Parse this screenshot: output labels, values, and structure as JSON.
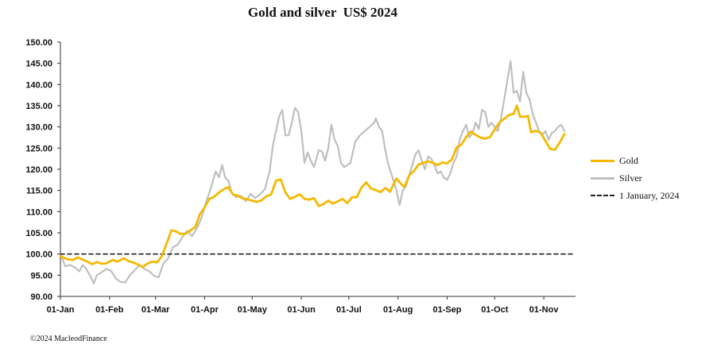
{
  "chart_data": {
    "type": "line",
    "title": "Gold and silver  US$ 2024",
    "y_ticks": [
      "90.00",
      "95.00",
      "100.00",
      "105.00",
      "110.00",
      "115.00",
      "120.00",
      "125.00",
      "130.00",
      "135.00",
      "140.00",
      "145.00",
      "150.00"
    ],
    "ylim": [
      90,
      150
    ],
    "x_ticks": [
      "01-Jan",
      "01-Feb",
      "01-Mar",
      "01-Apr",
      "01-May",
      "01-Jun",
      "01-Jul",
      "01-Aug",
      "01-Sep",
      "01-Oct",
      "01-Nov"
    ],
    "x_range_days": [
      0,
      325
    ],
    "series": [
      {
        "name": "Gold",
        "color": "#F5B800",
        "points": [
          [
            0,
            99.5
          ],
          [
            4,
            98.8
          ],
          [
            8,
            98.6
          ],
          [
            11,
            99.2
          ],
          [
            14,
            98.7
          ],
          [
            17,
            98.2
          ],
          [
            20,
            97.6
          ],
          [
            23,
            98.1
          ],
          [
            26,
            97.7
          ],
          [
            29,
            97.8
          ],
          [
            33,
            98.6
          ],
          [
            36,
            98.2
          ],
          [
            40,
            99.0
          ],
          [
            43,
            98.3
          ],
          [
            46,
            98.0
          ],
          [
            49,
            97.5
          ],
          [
            52,
            96.9
          ],
          [
            55,
            97.8
          ],
          [
            58,
            98.2
          ],
          [
            61,
            98.0
          ],
          [
            64,
            99.5
          ],
          [
            66,
            101.5
          ],
          [
            68,
            103.5
          ],
          [
            70,
            105.6
          ],
          [
            73,
            105.3
          ],
          [
            76,
            104.7
          ],
          [
            79,
            104.8
          ],
          [
            82,
            105.6
          ],
          [
            85,
            106.3
          ],
          [
            88,
            109.4
          ],
          [
            91,
            111.0
          ],
          [
            94,
            113.0
          ],
          [
            97,
            113.5
          ],
          [
            100,
            114.5
          ],
          [
            103,
            115.3
          ],
          [
            106,
            115.8
          ],
          [
            109,
            114.0
          ],
          [
            112,
            113.8
          ],
          [
            115,
            113.1
          ],
          [
            118,
            112.9
          ],
          [
            121,
            112.6
          ],
          [
            124,
            112.3
          ],
          [
            127,
            112.7
          ],
          [
            130,
            113.6
          ],
          [
            133,
            114.1
          ],
          [
            136,
            117.3
          ],
          [
            139,
            117.6
          ],
          [
            142,
            114.5
          ],
          [
            145,
            113.0
          ],
          [
            148,
            113.5
          ],
          [
            151,
            114.1
          ],
          [
            154,
            113.0
          ],
          [
            157,
            112.8
          ],
          [
            160,
            113.2
          ],
          [
            163,
            111.3
          ],
          [
            166,
            111.8
          ],
          [
            169,
            112.6
          ],
          [
            172,
            111.9
          ],
          [
            175,
            112.4
          ],
          [
            178,
            113.0
          ],
          [
            181,
            112.0
          ],
          [
            184,
            113.4
          ],
          [
            187,
            113.4
          ],
          [
            190,
            115.7
          ],
          [
            193,
            116.9
          ],
          [
            196,
            115.4
          ],
          [
            199,
            115.1
          ],
          [
            202,
            114.6
          ],
          [
            205,
            115.6
          ],
          [
            208,
            114.7
          ],
          [
            210,
            116.3
          ],
          [
            212,
            117.8
          ],
          [
            214,
            116.9
          ],
          [
            217,
            115.8
          ],
          [
            220,
            118.5
          ],
          [
            223,
            119.6
          ],
          [
            226,
            121.1
          ],
          [
            229,
            121.5
          ],
          [
            232,
            121.9
          ],
          [
            235,
            121.5
          ],
          [
            238,
            121.0
          ],
          [
            241,
            121.6
          ],
          [
            244,
            121.4
          ],
          [
            247,
            122.3
          ],
          [
            250,
            125.2
          ],
          [
            253,
            125.8
          ],
          [
            256,
            127.6
          ],
          [
            259,
            128.9
          ],
          [
            262,
            128.1
          ],
          [
            265,
            127.5
          ],
          [
            268,
            127.2
          ],
          [
            271,
            127.6
          ],
          [
            274,
            129.4
          ],
          [
            277,
            131.0
          ],
          [
            280,
            131.9
          ],
          [
            283,
            132.8
          ],
          [
            286,
            133.1
          ],
          [
            288,
            135.0
          ],
          [
            290,
            132.4
          ],
          [
            293,
            132.4
          ],
          [
            295,
            132.6
          ],
          [
            297,
            128.7
          ],
          [
            300,
            129.1
          ],
          [
            303,
            128.6
          ],
          [
            306,
            126.7
          ],
          [
            309,
            124.8
          ],
          [
            312,
            124.6
          ],
          [
            315,
            126.3
          ],
          [
            318,
            128.3
          ]
        ]
      },
      {
        "name": "Silver",
        "color": "#BFBFBF",
        "points": [
          [
            0,
            100.0
          ],
          [
            3,
            97.1
          ],
          [
            6,
            97.4
          ],
          [
            9,
            96.9
          ],
          [
            12,
            95.9
          ],
          [
            14,
            97.4
          ],
          [
            16,
            96.7
          ],
          [
            19,
            94.7
          ],
          [
            21,
            93.1
          ],
          [
            23,
            95.0
          ],
          [
            26,
            95.7
          ],
          [
            29,
            96.5
          ],
          [
            32,
            96.0
          ],
          [
            35,
            94.2
          ],
          [
            38,
            93.4
          ],
          [
            41,
            93.3
          ],
          [
            44,
            95.1
          ],
          [
            47,
            96.2
          ],
          [
            50,
            97.4
          ],
          [
            53,
            96.5
          ],
          [
            56,
            95.9
          ],
          [
            59,
            94.9
          ],
          [
            62,
            94.5
          ],
          [
            65,
            97.8
          ],
          [
            68,
            99.0
          ],
          [
            71,
            101.6
          ],
          [
            74,
            102.2
          ],
          [
            77,
            104.0
          ],
          [
            80,
            105.5
          ],
          [
            83,
            104.2
          ],
          [
            86,
            106.0
          ],
          [
            89,
            108.5
          ],
          [
            92,
            112.3
          ],
          [
            94,
            114.5
          ],
          [
            96,
            117.0
          ],
          [
            98,
            119.5
          ],
          [
            100,
            118.1
          ],
          [
            102,
            121.0
          ],
          [
            104,
            118.0
          ],
          [
            106,
            117.3
          ],
          [
            108,
            114.5
          ],
          [
            111,
            113.4
          ],
          [
            114,
            113.7
          ],
          [
            117,
            112.5
          ],
          [
            120,
            114.2
          ],
          [
            123,
            113.2
          ],
          [
            126,
            114.1
          ],
          [
            129,
            115.3
          ],
          [
            132,
            119.5
          ],
          [
            134,
            125.5
          ],
          [
            136,
            129.0
          ],
          [
            138,
            132.5
          ],
          [
            140,
            134.0
          ],
          [
            142,
            128.0
          ],
          [
            144,
            128.0
          ],
          [
            146,
            131.0
          ],
          [
            148,
            134.5
          ],
          [
            150,
            133.5
          ],
          [
            152,
            129.0
          ],
          [
            154,
            121.5
          ],
          [
            156,
            124.0
          ],
          [
            158,
            122.0
          ],
          [
            160,
            120.5
          ],
          [
            163,
            124.5
          ],
          [
            165,
            124.2
          ],
          [
            167,
            122.0
          ],
          [
            169,
            125.0
          ],
          [
            171,
            130.5
          ],
          [
            173,
            127.0
          ],
          [
            175,
            125.5
          ],
          [
            177,
            121.5
          ],
          [
            179,
            120.5
          ],
          [
            181,
            121.0
          ],
          [
            183,
            121.5
          ],
          [
            186,
            126.5
          ],
          [
            189,
            128.0
          ],
          [
            192,
            129.0
          ],
          [
            195,
            130.0
          ],
          [
            198,
            131.0
          ],
          [
            199,
            132.0
          ],
          [
            201,
            130.0
          ],
          [
            203,
            129.0
          ],
          [
            205,
            124.5
          ],
          [
            207,
            121.0
          ],
          [
            210,
            117.5
          ],
          [
            212,
            115.0
          ],
          [
            214,
            111.5
          ],
          [
            216,
            115.0
          ],
          [
            218,
            116.0
          ],
          [
            220,
            118.5
          ],
          [
            222,
            121.0
          ],
          [
            224,
            123.5
          ],
          [
            226,
            124.5
          ],
          [
            228,
            122.0
          ],
          [
            230,
            120.0
          ],
          [
            232,
            123.0
          ],
          [
            234,
            122.5
          ],
          [
            236,
            121.0
          ],
          [
            238,
            119.0
          ],
          [
            240,
            119.5
          ],
          [
            242,
            118.0
          ],
          [
            244,
            117.5
          ],
          [
            246,
            119.0
          ],
          [
            248,
            121.5
          ],
          [
            250,
            123.0
          ],
          [
            252,
            127.0
          ],
          [
            254,
            129.0
          ],
          [
            256,
            130.5
          ],
          [
            258,
            127.5
          ],
          [
            260,
            128.5
          ],
          [
            262,
            131.0
          ],
          [
            264,
            129.5
          ],
          [
            266,
            134.0
          ],
          [
            268,
            133.5
          ],
          [
            270,
            130.0
          ],
          [
            272,
            131.0
          ],
          [
            274,
            130.0
          ],
          [
            276,
            129.0
          ],
          [
            278,
            132.0
          ],
          [
            280,
            136.5
          ],
          [
            282,
            141.0
          ],
          [
            284,
            145.5
          ],
          [
            286,
            138.0
          ],
          [
            288,
            138.5
          ],
          [
            290,
            136.0
          ],
          [
            292,
            143.0
          ],
          [
            294,
            138.0
          ],
          [
            296,
            136.5
          ],
          [
            298,
            133.0
          ],
          [
            300,
            131.0
          ],
          [
            302,
            129.0
          ],
          [
            304,
            128.0
          ],
          [
            306,
            129.0
          ],
          [
            308,
            127.0
          ],
          [
            310,
            128.5
          ],
          [
            312,
            129.0
          ],
          [
            314,
            130.0
          ],
          [
            316,
            130.5
          ],
          [
            318,
            129.0
          ]
        ]
      },
      {
        "name": "1 January, 2024",
        "color": "#222222",
        "dashed": true,
        "points": [
          [
            0,
            100
          ],
          [
            325,
            100
          ]
        ]
      }
    ]
  },
  "footer": "©2024 MacleodFinance"
}
